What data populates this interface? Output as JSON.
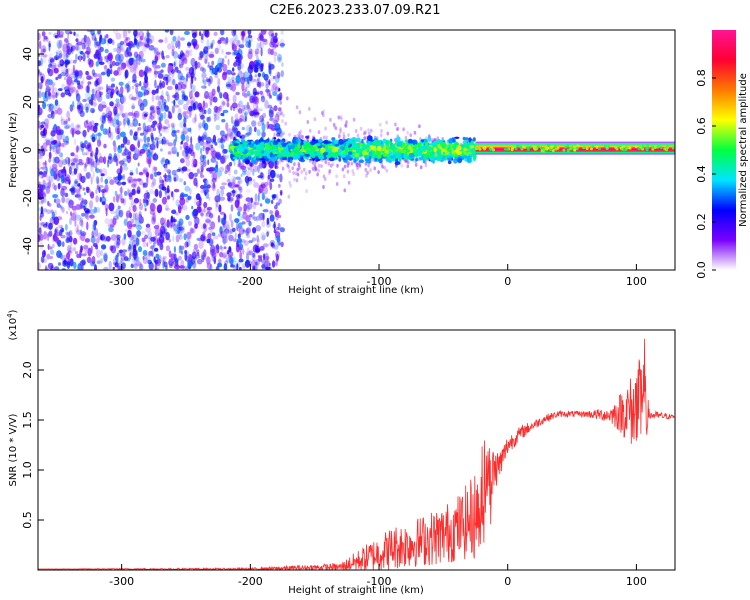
{
  "title": "C2E6.2023.233.07.09.R21",
  "chart_data": [
    {
      "type": "heatmap",
      "xlabel": "Height of straight line (km)",
      "ylabel": "Frequency (Hz)",
      "xlim": [
        -365,
        130
      ],
      "ylim": [
        -50,
        50
      ],
      "xticks": [
        -300,
        -200,
        -100,
        0,
        100
      ],
      "yticks": [
        -40,
        -20,
        0,
        20,
        40
      ],
      "colorbar": {
        "label": "Normalized spectral amplitude",
        "range": [
          0,
          1
        ],
        "ticks": [
          "0.0",
          "0.2",
          "0.4",
          "0.6",
          "0.8"
        ],
        "colormap": [
          "#ffffff",
          "#7a00ff",
          "#0000ff",
          "#00e5ff",
          "#00ff40",
          "#ffff00",
          "#ff7a00",
          "#ff0033",
          "#ff1493"
        ]
      },
      "features": [
        {
          "region": "x -365 to -180",
          "freq_range": [
            -50,
            50
          ],
          "amplitude": "low (0.0-0.15), scattered"
        },
        {
          "region": "x -180 to -30",
          "freq_range": [
            -10,
            10
          ],
          "amplitude": "medium (0.2-0.5), narrowing band"
        },
        {
          "region": "x -30 to 130",
          "freq_range": [
            -2,
            3
          ],
          "amplitude": "high (0.8-1.0), steady tone near 1 Hz"
        }
      ]
    },
    {
      "type": "line",
      "xlabel": "Height of straight line (km)",
      "ylabel": "SNR (10 * V/V)",
      "multiplier": "(x10",
      "multiplier_exp": "4",
      "multiplier_close": ")",
      "xlim": [
        -365,
        130
      ],
      "ylim": [
        0,
        2.4
      ],
      "xticks": [
        -300,
        -200,
        -100,
        0,
        100
      ],
      "yticks": [
        "0.5",
        "1.0",
        "1.5",
        "2.0"
      ],
      "color": "#ff2a2a",
      "series": [
        {
          "x": [
            -365,
            -300,
            -200,
            -130,
            -110,
            -90,
            -70,
            -50,
            -35,
            -25,
            -20,
            -15,
            -10,
            -5,
            0,
            10,
            20,
            30,
            40,
            60,
            80,
            90,
            100,
            105,
            110,
            130
          ],
          "y": [
            0.01,
            0.01,
            0.01,
            0.03,
            0.12,
            0.22,
            0.28,
            0.35,
            0.45,
            0.55,
            0.85,
            0.95,
            1.0,
            1.08,
            1.25,
            1.37,
            1.45,
            1.52,
            1.56,
            1.56,
            1.55,
            1.58,
            1.6,
            1.65,
            1.55,
            1.53
          ],
          "noise": [
            0.0,
            0.005,
            0.01,
            0.04,
            0.14,
            0.22,
            0.25,
            0.3,
            0.35,
            0.45,
            0.55,
            0.35,
            0.2,
            0.15,
            0.1,
            0.07,
            0.05,
            0.04,
            0.03,
            0.03,
            0.08,
            0.25,
            0.45,
            0.55,
            0.05,
            0.02
          ]
        }
      ]
    }
  ]
}
